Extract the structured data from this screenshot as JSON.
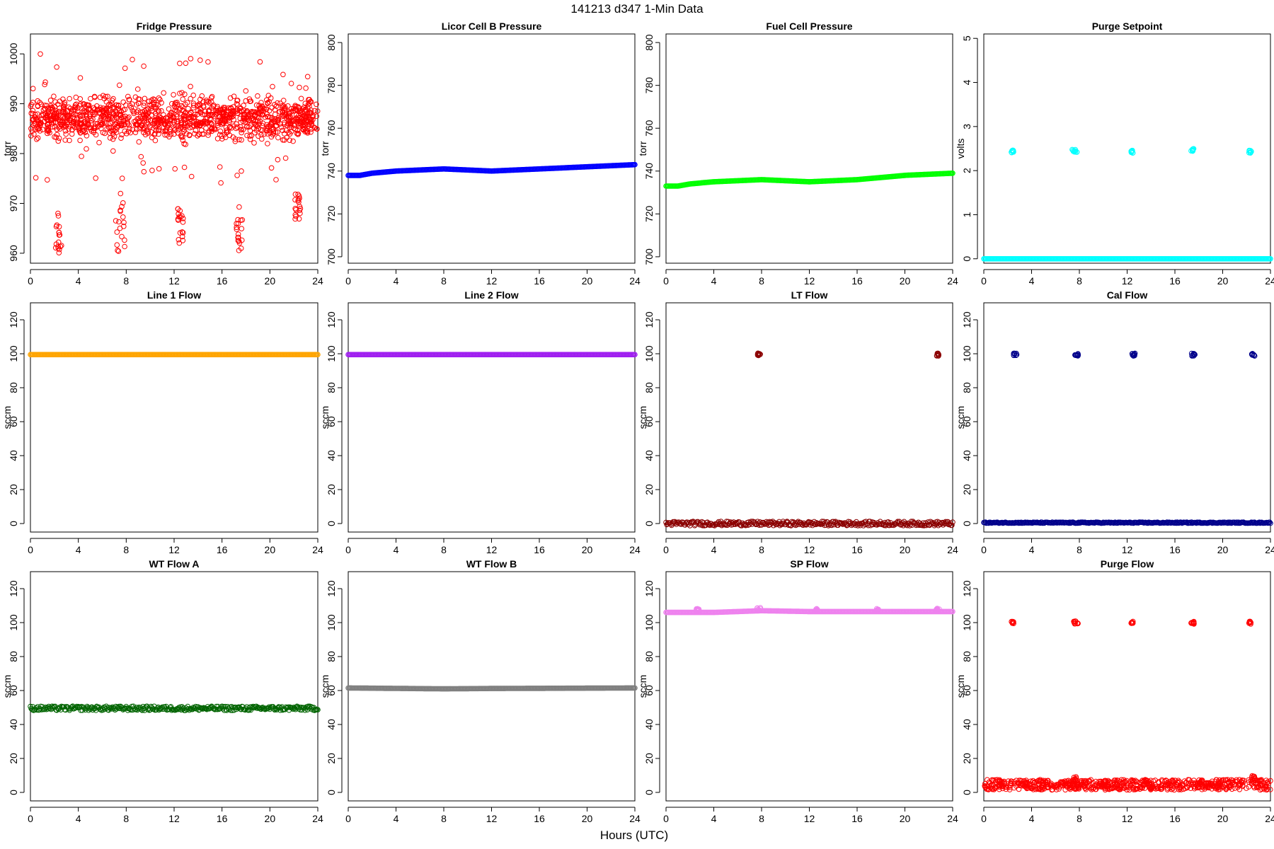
{
  "figure": {
    "title": "141213   d347   1-Min Data",
    "xlabel": "Hours (UTC)"
  },
  "chart_data": [
    {
      "type": "scatter",
      "title": "Fridge Pressure",
      "ylabel": "torr",
      "xlim": [
        0,
        24
      ],
      "ylim": [
        958,
        1004
      ],
      "xticks": [
        0,
        4,
        8,
        12,
        16,
        20,
        24
      ],
      "yticks": [
        960,
        970,
        980,
        990,
        1000
      ],
      "color": "#ff0000",
      "marker": "open-circle",
      "grid": false,
      "x_interval_min": 1,
      "data": {
        "kind": "noise",
        "base": 987,
        "spread": [
          -6,
          6
        ],
        "outliers": [
          {
            "x": [
              2.1,
              2.6
            ],
            "y": [
              959,
              968
            ]
          },
          {
            "x": [
              7.1,
              7.9
            ],
            "y": [
              960,
              972
            ]
          },
          {
            "x": [
              12.3,
              12.8
            ],
            "y": [
              962,
              969
            ]
          },
          {
            "x": [
              17.2,
              17.7
            ],
            "y": [
              960,
              970
            ]
          },
          {
            "x": [
              22.1,
              22.6
            ],
            "y": [
              966,
              972
            ]
          }
        ]
      }
    },
    {
      "type": "scatter",
      "title": "Licor Cell B Pressure",
      "ylabel": "torr",
      "xlim": [
        0,
        24
      ],
      "ylim": [
        697,
        804
      ],
      "xticks": [
        0,
        4,
        8,
        12,
        16,
        20,
        24
      ],
      "yticks": [
        700,
        720,
        740,
        760,
        780,
        800
      ],
      "color": "#0000ff",
      "marker": "open-circle",
      "grid": false,
      "series": [
        {
          "x": [
            0,
            1,
            2,
            3,
            4,
            6,
            8,
            10,
            12,
            14,
            16,
            18,
            20,
            22,
            24
          ],
          "y": [
            738,
            738,
            739,
            739.5,
            740,
            740.5,
            741,
            740.5,
            740,
            740.5,
            741,
            741.5,
            742,
            742.5,
            743
          ]
        }
      ]
    },
    {
      "type": "scatter",
      "title": "Fuel Cell Pressure",
      "ylabel": "torr",
      "xlim": [
        0,
        24
      ],
      "ylim": [
        697,
        804
      ],
      "xticks": [
        0,
        4,
        8,
        12,
        16,
        20,
        24
      ],
      "yticks": [
        700,
        720,
        740,
        760,
        780,
        800
      ],
      "color": "#00ff00",
      "marker": "open-circle",
      "grid": false,
      "series": [
        {
          "x": [
            0,
            1,
            2,
            3,
            4,
            6,
            8,
            10,
            12,
            14,
            16,
            18,
            20,
            22,
            24
          ],
          "y": [
            733,
            733,
            734,
            734.5,
            735,
            735.5,
            736,
            735.5,
            735,
            735.5,
            736,
            737,
            738,
            738.5,
            739
          ]
        }
      ]
    },
    {
      "type": "scatter",
      "title": "Purge Setpoint",
      "ylabel": "volts",
      "xlim": [
        0,
        24
      ],
      "ylim": [
        -0.1,
        5.1
      ],
      "xticks": [
        0,
        4,
        8,
        12,
        16,
        20,
        24
      ],
      "yticks": [
        0,
        1,
        2,
        3,
        4,
        5
      ],
      "color": "#00ffff",
      "marker": "open-circle",
      "grid": false,
      "series": [
        {
          "x": [
            0,
            24
          ],
          "y": [
            0,
            0
          ]
        }
      ],
      "clusters": [
        {
          "x": [
            2.3,
            2.5
          ],
          "y": 2.43
        },
        {
          "x": [
            7.4,
            7.9
          ],
          "y": 2.45
        },
        {
          "x": [
            12.3,
            12.5
          ],
          "y": 2.43
        },
        {
          "x": [
            17.3,
            17.6
          ],
          "y": 2.47
        },
        {
          "x": [
            22.2,
            22.4
          ],
          "y": 2.43
        }
      ]
    },
    {
      "type": "scatter",
      "title": "Line 1 Flow",
      "ylabel": "sccm",
      "xlim": [
        0,
        24
      ],
      "ylim": [
        -5,
        130
      ],
      "xticks": [
        0,
        4,
        8,
        12,
        16,
        20,
        24
      ],
      "yticks": [
        0,
        20,
        40,
        60,
        80,
        100,
        120
      ],
      "color": "#ffa500",
      "marker": "open-circle",
      "grid": false,
      "series": [
        {
          "x": [
            0,
            24
          ],
          "y": [
            99.5,
            99.5
          ]
        }
      ]
    },
    {
      "type": "scatter",
      "title": "Line 2 Flow",
      "ylabel": "sccm",
      "xlim": [
        0,
        24
      ],
      "ylim": [
        -5,
        130
      ],
      "xticks": [
        0,
        4,
        8,
        12,
        16,
        20,
        24
      ],
      "yticks": [
        0,
        20,
        40,
        60,
        80,
        100,
        120
      ],
      "color": "#a020f0",
      "marker": "open-circle",
      "grid": false,
      "series": [
        {
          "x": [
            0,
            24
          ],
          "y": [
            99.5,
            99.5
          ]
        }
      ]
    },
    {
      "type": "scatter",
      "title": "LT Flow",
      "ylabel": "sccm",
      "xlim": [
        0,
        24
      ],
      "ylim": [
        -5,
        130
      ],
      "xticks": [
        0,
        4,
        8,
        12,
        16,
        20,
        24
      ],
      "yticks": [
        0,
        20,
        40,
        60,
        80,
        100,
        120
      ],
      "color": "#8b0000",
      "marker": "open-circle",
      "grid": false,
      "series": [
        {
          "x": [
            0,
            24
          ],
          "y": [
            0,
            0
          ]
        }
      ],
      "clusters": [
        {
          "x": [
            7.6,
            7.9
          ],
          "y": 99.5
        },
        {
          "x": [
            22.6,
            22.9
          ],
          "y": 99.5
        }
      ]
    },
    {
      "type": "scatter",
      "title": "Cal Flow",
      "ylabel": "sccm",
      "xlim": [
        0,
        24
      ],
      "ylim": [
        -5,
        130
      ],
      "xticks": [
        0,
        4,
        8,
        12,
        16,
        20,
        24
      ],
      "yticks": [
        0,
        20,
        40,
        60,
        80,
        100,
        120
      ],
      "color": "#00008b",
      "marker": "open-circle",
      "grid": false,
      "series": [
        {
          "x": [
            0,
            24
          ],
          "y": [
            0.5,
            0.5
          ]
        }
      ],
      "clusters": [
        {
          "x": [
            2.5,
            2.8
          ],
          "y": 99.5
        },
        {
          "x": [
            7.5,
            7.9
          ],
          "y": 99.5
        },
        {
          "x": [
            12.4,
            12.7
          ],
          "y": 99.5
        },
        {
          "x": [
            17.4,
            17.7
          ],
          "y": 99.5
        },
        {
          "x": [
            22.4,
            22.7
          ],
          "y": 99.5
        }
      ]
    },
    {
      "type": "scatter",
      "title": "WT Flow A",
      "ylabel": "sccm",
      "xlim": [
        0,
        24
      ],
      "ylim": [
        -5,
        130
      ],
      "xticks": [
        0,
        4,
        8,
        12,
        16,
        20,
        24
      ],
      "yticks": [
        0,
        20,
        40,
        60,
        80,
        100,
        120
      ],
      "color": "#006400",
      "marker": "open-circle",
      "grid": false,
      "series": [
        {
          "x": [
            0,
            24
          ],
          "y": [
            49.5,
            49.5
          ]
        }
      ]
    },
    {
      "type": "scatter",
      "title": "WT Flow B",
      "ylabel": "sccm",
      "xlim": [
        0,
        24
      ],
      "ylim": [
        -5,
        130
      ],
      "xticks": [
        0,
        4,
        8,
        12,
        16,
        20,
        24
      ],
      "yticks": [
        0,
        20,
        40,
        60,
        80,
        100,
        120
      ],
      "color": "#808080",
      "marker": "open-circle",
      "grid": false,
      "series": [
        {
          "x": [
            0,
            8,
            12,
            24
          ],
          "y": [
            61.5,
            61,
            61.2,
            61.5
          ]
        }
      ]
    },
    {
      "type": "scatter",
      "title": "SP Flow",
      "ylabel": "sccm",
      "xlim": [
        0,
        24
      ],
      "ylim": [
        -5,
        130
      ],
      "xticks": [
        0,
        4,
        8,
        12,
        16,
        20,
        24
      ],
      "yticks": [
        0,
        20,
        40,
        60,
        80,
        100,
        120
      ],
      "color": "#ee82ee",
      "marker": "open-circle",
      "grid": false,
      "series": [
        {
          "x": [
            0,
            4,
            8,
            12,
            16,
            20,
            24
          ],
          "y": [
            106,
            106,
            107,
            106.5,
            106.5,
            106.5,
            106.5
          ]
        }
      ],
      "clusters": [
        {
          "x": [
            2.5,
            2.8
          ],
          "y": 107.5
        },
        {
          "x": [
            7.6,
            7.9
          ],
          "y": 108
        },
        {
          "x": [
            12.5,
            12.7
          ],
          "y": 107.5
        },
        {
          "x": [
            17.6,
            17.8
          ],
          "y": 107.5
        },
        {
          "x": [
            22.6,
            22.9
          ],
          "y": 108
        }
      ]
    },
    {
      "type": "scatter",
      "title": "Purge Flow",
      "ylabel": "sccm",
      "xlim": [
        0,
        24
      ],
      "ylim": [
        -5,
        130
      ],
      "xticks": [
        0,
        4,
        8,
        12,
        16,
        20,
        24
      ],
      "yticks": [
        0,
        20,
        40,
        60,
        80,
        100,
        120
      ],
      "color": "#ff0000",
      "marker": "open-circle",
      "grid": false,
      "data": {
        "kind": "band",
        "base": 4.5,
        "spread": [
          -3,
          3
        ],
        "bumps": [
          {
            "x": 7.6,
            "y": 8
          },
          {
            "x": 22.5,
            "y": 9
          }
        ]
      },
      "clusters": [
        {
          "x": [
            2.3,
            2.5
          ],
          "y": 100
        },
        {
          "x": [
            7.4,
            7.9
          ],
          "y": 100
        },
        {
          "x": [
            12.3,
            12.5
          ],
          "y": 100
        },
        {
          "x": [
            17.3,
            17.6
          ],
          "y": 100
        },
        {
          "x": [
            22.2,
            22.4
          ],
          "y": 100
        }
      ]
    }
  ]
}
